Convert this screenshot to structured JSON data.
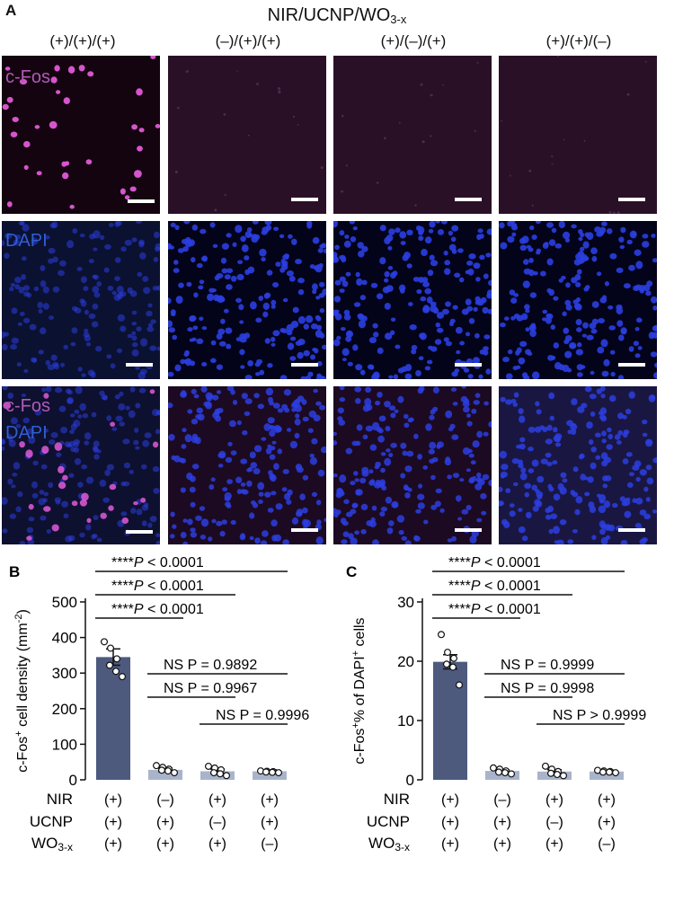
{
  "panel_a": {
    "letter": "A",
    "title_main": "NIR/UCNP/WO",
    "title_sub": "3-x",
    "columns": [
      "(+)/(+)/(+)",
      "(–)/(+)/(+)",
      "(+)/(–)/(+)",
      "(+)/(+)/(–)"
    ],
    "row_labels": {
      "cfos": "c-Fos",
      "dapi": "DAPI",
      "merge_top": "c-Fos",
      "merge_bottom": "DAPI"
    },
    "colors": {
      "cfos_label": "#b05ab8",
      "dapi_label": "#2f5fd0",
      "cfos_bg": "#1a0713",
      "cfos_dots": "#e05ad8",
      "dapi_bg": "#030316",
      "dapi_dots": "#2b3ee0"
    }
  },
  "chart_data": [
    {
      "type": "bar",
      "panel_letter": "B",
      "ylabel": "c-Fos+ cell density (mm-2)",
      "ylim": [
        0,
        500
      ],
      "yticks": [
        "0",
        "100",
        "200",
        "300",
        "400",
        "500"
      ],
      "categories": [
        "(+)/(+)/(+)",
        "(–)/(+)/(+)",
        "(+)/(–)/(+)",
        "(+)/(+)/(–)"
      ],
      "values": [
        345,
        28,
        24,
        24
      ],
      "sem": [
        23,
        5,
        6,
        4
      ],
      "points": [
        [
          388,
          370,
          340,
          322,
          305,
          290
        ],
        [
          40,
          35,
          30,
          27,
          25,
          20
        ],
        [
          38,
          33,
          28,
          20,
          17,
          12
        ],
        [
          25,
          24,
          23,
          22,
          21,
          20
        ]
      ],
      "bar_colors": [
        "#4d5a7e",
        "#a9b4cb",
        "#a9b4cb",
        "#a9b4cb"
      ],
      "comparisons": [
        {
          "label": "****P < 0.0001",
          "from": 0,
          "to": 3
        },
        {
          "label": "****P < 0.0001",
          "from": 0,
          "to": 2
        },
        {
          "label": "****P < 0.0001",
          "from": 0,
          "to": 1
        },
        {
          "label": "NS P = 0.9892",
          "from": 1,
          "to": 3
        },
        {
          "label": "NS P = 0.9967",
          "from": 1,
          "to": 2
        },
        {
          "label": "NS P = 0.9996",
          "from": 2,
          "to": 3
        }
      ],
      "row_headers": [
        "NIR",
        "UCNP",
        "WO3-x"
      ],
      "row_values": [
        [
          "(+)",
          "(–)",
          "(+)",
          "(+)"
        ],
        [
          "(+)",
          "(+)",
          "(–)",
          "(+)"
        ],
        [
          "(+)",
          "(+)",
          "(+)",
          "(–)"
        ]
      ]
    },
    {
      "type": "bar",
      "panel_letter": "C",
      "ylabel": "c-Fos+% of DAPI+ cells",
      "ylim": [
        0,
        30
      ],
      "yticks": [
        "0",
        "10",
        "20",
        "30"
      ],
      "categories": [
        "(+)/(+)/(+)",
        "(–)/(+)/(+)",
        "(+)/(–)/(+)",
        "(+)/(+)/(–)"
      ],
      "values": [
        19.9,
        1.5,
        1.4,
        1.4
      ],
      "sem": [
        1.2,
        0.2,
        0.3,
        0.2
      ],
      "points": [
        [
          24.5,
          21.5,
          20.5,
          19.5,
          19.0,
          16.0
        ],
        [
          2.0,
          1.8,
          1.5,
          1.3,
          1.2,
          1.0
        ],
        [
          2.3,
          1.8,
          1.4,
          1.1,
          0.9,
          0.7
        ],
        [
          1.6,
          1.5,
          1.4,
          1.3,
          1.3,
          1.2
        ]
      ],
      "bar_colors": [
        "#4d5a7e",
        "#a9b4cb",
        "#a9b4cb",
        "#a9b4cb"
      ],
      "comparisons": [
        {
          "label": "****P < 0.0001",
          "from": 0,
          "to": 3
        },
        {
          "label": "****P < 0.0001",
          "from": 0,
          "to": 2
        },
        {
          "label": "****P < 0.0001",
          "from": 0,
          "to": 1
        },
        {
          "label": "NS P = 0.9999",
          "from": 1,
          "to": 3
        },
        {
          "label": "NS P = 0.9998",
          "from": 1,
          "to": 2
        },
        {
          "label": "NS P > 0.9999",
          "from": 2,
          "to": 3
        }
      ],
      "row_headers": [
        "NIR",
        "UCNP",
        "WO3-x"
      ],
      "row_values": [
        [
          "(+)",
          "(–)",
          "(+)",
          "(+)"
        ],
        [
          "(+)",
          "(+)",
          "(–)",
          "(+)"
        ],
        [
          "(+)",
          "(+)",
          "(+)",
          "(–)"
        ]
      ]
    }
  ]
}
